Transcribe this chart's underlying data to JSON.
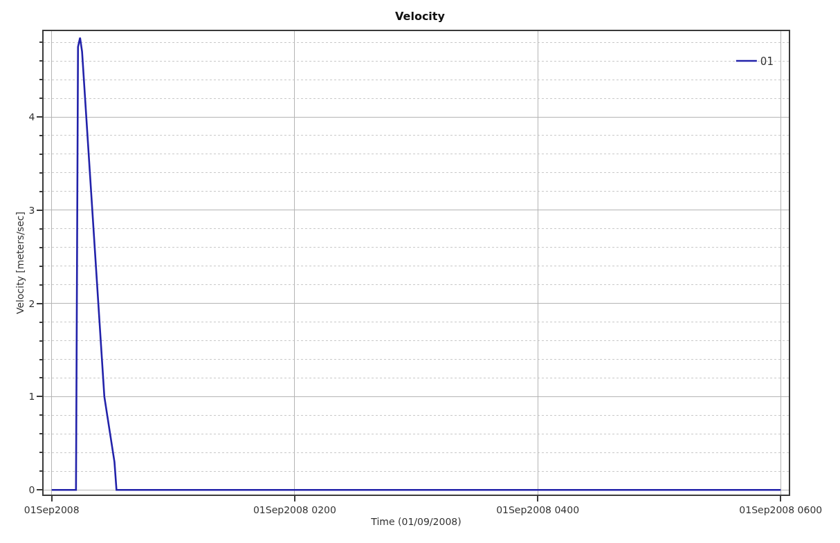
{
  "chart_data": {
    "type": "line",
    "title": "Velocity",
    "xlabel": "Time (01/09/2008)",
    "ylabel": "Velocity [meters/sec]",
    "x": [
      "2008-09-01T00:00",
      "2008-09-01T00:12",
      "2008-09-01T00:13",
      "2008-09-01T00:14",
      "2008-09-01T00:15",
      "2008-09-01T00:26",
      "2008-09-01T00:31",
      "2008-09-01T00:32",
      "2008-09-01T06:00"
    ],
    "series": [
      {
        "name": "01",
        "color": "#2222aa",
        "values": [
          0,
          0,
          4.75,
          4.85,
          4.7,
          1.0,
          0.3,
          0,
          0
        ]
      }
    ],
    "xlim": [
      "2008-08-31T23:56",
      "2008-09-01T06:04"
    ],
    "xticks": [
      {
        "value": "2008-09-01T00:00",
        "label": "01Sep2008"
      },
      {
        "value": "2008-09-01T02:00",
        "label": "01Sep2008 0200"
      },
      {
        "value": "2008-09-01T04:00",
        "label": "01Sep2008 0400"
      },
      {
        "value": "2008-09-01T06:00",
        "label": "01Sep2008 0600"
      }
    ],
    "ylim": [
      -0.05,
      4.92
    ],
    "yticks": [
      0,
      1,
      2,
      3,
      4,
      {
        "value": 0.2,
        "label": null
      },
      {
        "value": 0.4,
        "label": null
      },
      {
        "value": 0.6,
        "label": null
      },
      {
        "value": 0.8,
        "label": null
      },
      {
        "value": 1.2,
        "label": null
      },
      {
        "value": 1.4,
        "label": null
      },
      {
        "value": 1.6,
        "label": null
      },
      {
        "value": 1.8,
        "label": null
      },
      {
        "value": 2.2,
        "label": null
      },
      {
        "value": 2.4,
        "label": null
      },
      {
        "value": 2.6,
        "label": null
      },
      {
        "value": 2.8,
        "label": null
      },
      {
        "value": 3.2,
        "label": null
      },
      {
        "value": 3.4,
        "label": null
      },
      {
        "value": 3.6,
        "label": null
      },
      {
        "value": 3.8,
        "label": null
      },
      {
        "value": 4.2,
        "label": null
      },
      {
        "value": 4.4,
        "label": null
      },
      {
        "value": 4.6,
        "label": null
      },
      {
        "value": 4.8,
        "label": null
      }
    ],
    "grid": true,
    "legend": "top right",
    "line_style": "solid"
  }
}
